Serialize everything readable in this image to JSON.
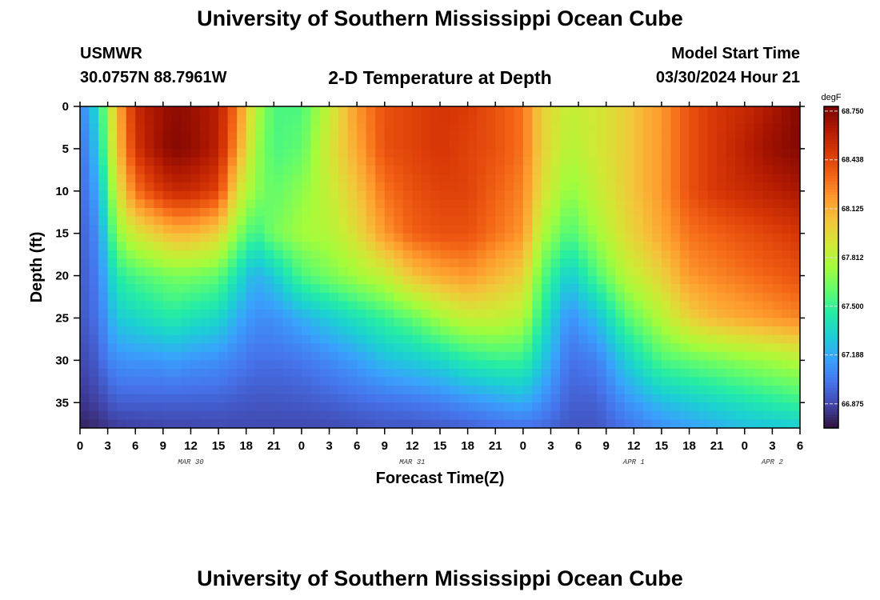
{
  "header": {
    "title": "University of Southern Mississippi Ocean Cube",
    "station": "USMWR",
    "coords": "30.0757N  88.7961W",
    "subtitle": "2-D Temperature at Depth",
    "model_label": "Model Start Time",
    "model_time": "03/30/2024 Hour 21"
  },
  "footer": {
    "title": "University of Southern Mississippi Ocean Cube"
  },
  "chart_data": {
    "type": "heatmap",
    "xlabel": "Forecast Time(Z)",
    "ylabel": "Depth (ft)",
    "x_tick_labels": [
      "0",
      "3",
      "6",
      "9",
      "12",
      "15",
      "18",
      "21",
      "0",
      "3",
      "6",
      "9",
      "12",
      "15",
      "18",
      "21",
      "0",
      "3",
      "6",
      "9",
      "12",
      "15",
      "18",
      "21",
      "0",
      "3",
      "6"
    ],
    "date_labels": [
      {
        "label": "MAR 30",
        "x_index": 4
      },
      {
        "label": "MAR 31",
        "x_index": 12
      },
      {
        "label": "APR 1",
        "x_index": 20
      },
      {
        "label": "APR 2",
        "x_index": 25
      }
    ],
    "y_ticks": [
      0,
      5,
      10,
      15,
      20,
      25,
      30,
      35
    ],
    "ylim": [
      0,
      38
    ],
    "hours_span": 78,
    "colorbar": {
      "unit": "degF",
      "min": 66.72,
      "max": 68.78,
      "ticks": [
        "68.750",
        "68.438",
        "68.125",
        "67.812",
        "67.500",
        "67.188",
        "66.875"
      ],
      "colors": [
        "#30123b",
        "#4145ab",
        "#4675ed",
        "#39a2fc",
        "#1bcfd4",
        "#24eca6",
        "#61fc6c",
        "#a4fc3b",
        "#d1e834",
        "#f3c63a",
        "#fe9b2d",
        "#f36315",
        "#d93806",
        "#b11901",
        "#7a0402"
      ]
    },
    "profile_hours": [
      0,
      1,
      2,
      3,
      4,
      6,
      8,
      10,
      12,
      15,
      17,
      19,
      21,
      24,
      27,
      30,
      33,
      36,
      39,
      42,
      45,
      48,
      50,
      53,
      56,
      59,
      63,
      66,
      69,
      72,
      75,
      78
    ],
    "profile_depths": [
      0,
      5,
      10,
      15,
      20,
      25,
      30,
      35,
      38
    ],
    "temperature_profiles": [
      [
        67.05,
        67.0,
        66.98,
        66.96,
        66.94,
        66.92,
        66.88,
        66.82,
        66.76
      ],
      [
        67.2,
        67.12,
        67.05,
        67.0,
        66.98,
        66.96,
        66.9,
        66.84,
        66.78
      ],
      [
        67.4,
        67.32,
        67.22,
        67.12,
        67.05,
        67.02,
        66.95,
        66.86,
        66.8
      ],
      [
        67.75,
        67.7,
        67.55,
        67.4,
        67.25,
        67.15,
        67.05,
        66.9,
        66.82
      ],
      [
        68.1,
        68.05,
        67.9,
        67.7,
        67.45,
        67.3,
        67.1,
        66.95,
        66.84
      ],
      [
        68.55,
        68.5,
        68.3,
        67.9,
        67.55,
        67.35,
        67.12,
        66.95,
        66.85
      ],
      [
        68.65,
        68.65,
        68.45,
        68.0,
        67.6,
        67.4,
        67.12,
        66.95,
        66.86
      ],
      [
        68.72,
        68.75,
        68.55,
        68.1,
        67.65,
        67.45,
        67.15,
        66.95,
        66.87
      ],
      [
        68.7,
        68.72,
        68.55,
        68.1,
        67.65,
        67.4,
        67.12,
        66.95,
        66.87
      ],
      [
        68.6,
        68.6,
        68.45,
        68.0,
        67.6,
        67.35,
        67.1,
        66.95,
        66.88
      ],
      [
        68.3,
        68.2,
        67.95,
        67.7,
        67.4,
        67.2,
        67.05,
        66.93,
        66.88
      ],
      [
        67.8,
        67.75,
        67.7,
        67.5,
        67.2,
        67.1,
        67.0,
        66.92,
        66.88
      ],
      [
        67.55,
        67.55,
        67.6,
        67.65,
        67.3,
        67.1,
        67.0,
        66.92,
        66.88
      ],
      [
        67.55,
        67.6,
        67.7,
        67.75,
        67.55,
        67.2,
        67.02,
        66.93,
        66.88
      ],
      [
        67.85,
        67.9,
        67.85,
        67.8,
        67.65,
        67.3,
        67.08,
        66.95,
        66.88
      ],
      [
        68.2,
        68.15,
        68.05,
        67.95,
        67.75,
        67.4,
        67.15,
        66.98,
        66.9
      ],
      [
        68.4,
        68.4,
        68.3,
        68.2,
        67.85,
        67.5,
        67.25,
        67.0,
        66.92
      ],
      [
        68.45,
        68.45,
        68.4,
        68.35,
        68.05,
        67.6,
        67.3,
        67.02,
        66.92
      ],
      [
        68.5,
        68.5,
        68.45,
        68.4,
        68.15,
        67.75,
        67.35,
        67.05,
        66.93
      ],
      [
        68.48,
        68.45,
        68.45,
        68.4,
        68.2,
        67.85,
        67.45,
        67.1,
        66.95
      ],
      [
        68.4,
        68.4,
        68.35,
        68.3,
        68.1,
        67.85,
        67.5,
        67.15,
        66.98
      ],
      [
        68.3,
        68.3,
        68.25,
        68.2,
        68.0,
        67.8,
        67.5,
        67.2,
        67.0
      ],
      [
        68.0,
        68.0,
        67.95,
        67.8,
        67.6,
        67.45,
        67.3,
        67.1,
        66.98
      ],
      [
        67.85,
        67.8,
        67.7,
        67.55,
        67.3,
        67.1,
        67.0,
        66.95,
        66.92
      ],
      [
        67.9,
        67.9,
        67.85,
        67.75,
        67.55,
        67.25,
        67.05,
        66.95,
        66.92
      ],
      [
        68.0,
        68.0,
        68.0,
        67.95,
        67.8,
        67.55,
        67.3,
        67.1,
        67.0
      ],
      [
        68.2,
        68.2,
        68.2,
        68.15,
        68.0,
        67.8,
        67.55,
        67.25,
        67.1
      ],
      [
        68.4,
        68.4,
        68.4,
        68.3,
        68.2,
        68.0,
        67.6,
        67.3,
        67.15
      ],
      [
        68.5,
        68.5,
        68.5,
        68.35,
        68.25,
        68.1,
        67.65,
        67.35,
        67.2
      ],
      [
        68.55,
        68.6,
        68.55,
        68.4,
        68.3,
        68.15,
        67.7,
        67.4,
        67.25
      ],
      [
        68.65,
        68.7,
        68.6,
        68.45,
        68.35,
        68.2,
        67.75,
        67.45,
        67.28
      ],
      [
        68.75,
        68.75,
        68.65,
        68.5,
        68.4,
        68.25,
        67.8,
        67.5,
        67.3
      ]
    ]
  }
}
